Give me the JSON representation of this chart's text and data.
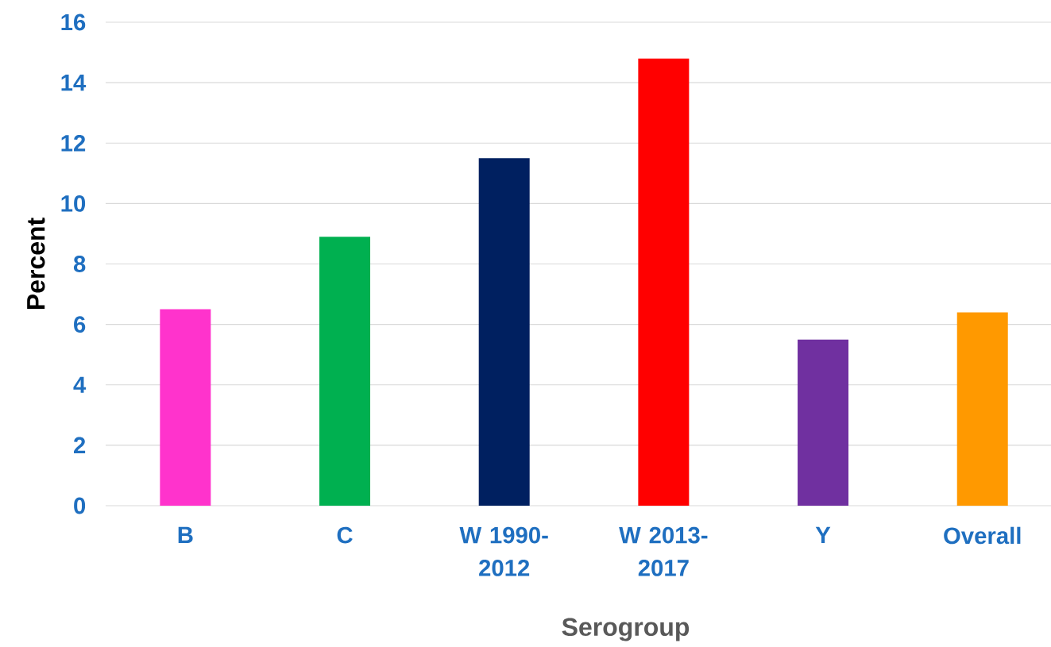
{
  "chart_data": {
    "type": "bar",
    "xlabel": "Serogroup",
    "ylabel": "Percent",
    "categories": [
      "B",
      "C",
      "W 1990-2012",
      "W 2013-2017",
      "Y",
      "Overall"
    ],
    "values": [
      6.5,
      8.9,
      11.5,
      14.8,
      5.5,
      6.4
    ],
    "colors": [
      "#ff33cc",
      "#00b050",
      "#002060",
      "#ff0000",
      "#7030a0",
      "#ff9900"
    ],
    "ylim": [
      0,
      16
    ],
    "yticks": [
      0,
      2,
      4,
      6,
      8,
      10,
      12,
      14,
      16
    ],
    "grid": "y"
  }
}
